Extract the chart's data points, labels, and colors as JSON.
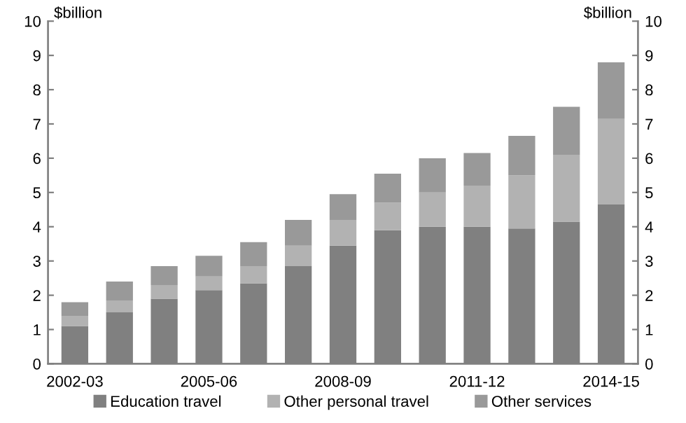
{
  "chart_data": {
    "type": "bar",
    "stacked": true,
    "ylabel": "$billion",
    "y2label": "$billion",
    "categories": [
      "2002-03",
      null,
      null,
      "2005-06",
      null,
      null,
      "2008-09",
      null,
      null,
      "2011-12",
      null,
      null,
      "2014-15"
    ],
    "series": [
      {
        "name": "Education travel",
        "color": "#808080",
        "values": [
          1.1,
          1.5,
          1.9,
          2.15,
          2.35,
          2.85,
          3.45,
          3.9,
          4.0,
          4.0,
          3.95,
          4.15,
          4.65
        ]
      },
      {
        "name": "Other personal travel",
        "color": "#b2b2b2",
        "values": [
          0.3,
          0.35,
          0.4,
          0.4,
          0.5,
          0.6,
          0.75,
          0.8,
          1.0,
          1.2,
          1.55,
          1.95,
          2.5
        ]
      },
      {
        "name": "Other services",
        "color": "#999999",
        "values": [
          0.4,
          0.55,
          0.55,
          0.6,
          0.7,
          0.75,
          0.75,
          0.85,
          1.0,
          0.95,
          1.15,
          1.4,
          1.65
        ]
      }
    ],
    "ylim": [
      0,
      10
    ],
    "yticks": [
      0,
      1,
      2,
      3,
      4,
      5,
      6,
      7,
      8,
      9,
      10
    ],
    "y2lim": [
      0,
      10
    ],
    "y2ticks": [
      0,
      1,
      2,
      3,
      4,
      5,
      6,
      7,
      8,
      9,
      10
    ],
    "grid": false,
    "legend": "bottom"
  }
}
